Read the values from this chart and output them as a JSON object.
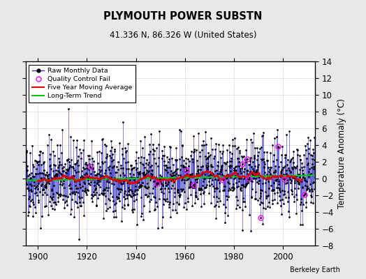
{
  "title": "PLYMOUTH POWER SUBSTN",
  "subtitle": "41.336 N, 86.326 W (United States)",
  "credit": "Berkeley Earth",
  "ylabel": "Temperature Anomaly (°C)",
  "xmin": 1895,
  "xmax": 2013,
  "ymin": -8,
  "ymax": 14,
  "yticks": [
    -8,
    -6,
    -4,
    -2,
    0,
    2,
    4,
    6,
    8,
    10,
    12,
    14
  ],
  "xticks": [
    1900,
    1920,
    1940,
    1960,
    1980,
    2000
  ],
  "bg_color": "#e8e8e8",
  "plot_bg_color": "#ffffff",
  "raw_color": "#3333cc",
  "raw_dot_color": "#000000",
  "qc_fail_color": "#ff00ff",
  "moving_avg_color": "#dd0000",
  "trend_color": "#00cc00",
  "seed": 42,
  "start_year": 1895,
  "end_year": 2013,
  "noise_std": 2.2,
  "trend_slope": 0.003
}
